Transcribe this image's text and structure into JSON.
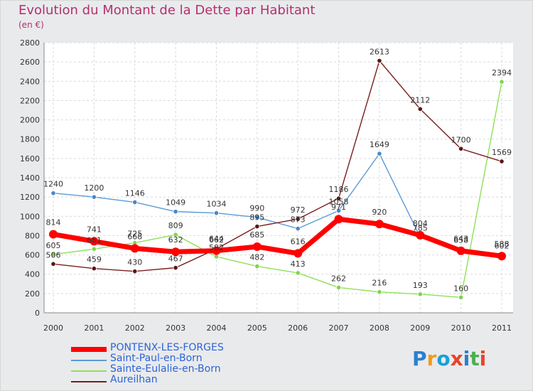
{
  "chart_data": {
    "type": "line",
    "title": "Evolution du Montant de la Dette par Habitant",
    "subtitle": "(en €)",
    "x": [
      "2000",
      "2001",
      "2002",
      "2003",
      "2004",
      "2005",
      "2006",
      "2007",
      "2008",
      "2009",
      "2010",
      "2011"
    ],
    "ylim": [
      0,
      2800
    ],
    "yticks": [
      0,
      200,
      400,
      600,
      800,
      1000,
      1200,
      1400,
      1600,
      1800,
      2000,
      2200,
      2400,
      2600,
      2800
    ],
    "grid": true,
    "legend_position": "bottom-left",
    "series": [
      {
        "name": "PONTENX-LES-FORGES",
        "color": "#ff0000",
        "values": [
          814,
          741,
          668,
          632,
          644,
          685,
          616,
          971,
          920,
          804,
          643,
          588
        ]
      },
      {
        "name": "Saint-Paul-en-Born",
        "color": "#5b9bd5",
        "values": [
          1240,
          1200,
          1146,
          1049,
          1034,
          990,
          873,
          1058,
          1649,
          785,
          658,
          602
        ]
      },
      {
        "name": "Sainte-Eulalie-en-Born",
        "color": "#8ee05a",
        "values": [
          605,
          661,
          725,
          809,
          582,
          482,
          413,
          262,
          216,
          193,
          160,
          2394
        ]
      },
      {
        "name": "Aureilhan",
        "color": "#7a1f1f",
        "values": [
          506,
          459,
          430,
          467,
          662,
          895,
          972,
          1186,
          2613,
          2112,
          1700,
          1569
        ]
      }
    ],
    "data_labels": [
      [
        "814",
        "741",
        "668",
        "632",
        "644",
        "685",
        "616",
        "971",
        "920",
        "804",
        "643",
        "588"
      ],
      [
        "1240",
        "1200",
        "1146",
        "1049",
        "1034",
        "990",
        "873",
        "1058",
        "1649",
        "785",
        "658",
        "602"
      ],
      [
        "605",
        "661",
        "725",
        "809",
        "582",
        "482",
        "413",
        "262",
        "216",
        "193",
        "160",
        "2394"
      ],
      [
        "506",
        "459",
        "430",
        "467",
        "662",
        "895",
        "972",
        "1186",
        "2613",
        "2112",
        "1700",
        "1569"
      ]
    ]
  },
  "brand": {
    "text": "Proxiti",
    "letters": [
      "P",
      "r",
      "o",
      "x",
      "i",
      "t",
      "i"
    ],
    "colors": [
      "#2a7fd1",
      "#f29a18",
      "#1aa0d8",
      "#e7442a",
      "#2a7fd1",
      "#4caf50",
      "#e7442a"
    ]
  }
}
